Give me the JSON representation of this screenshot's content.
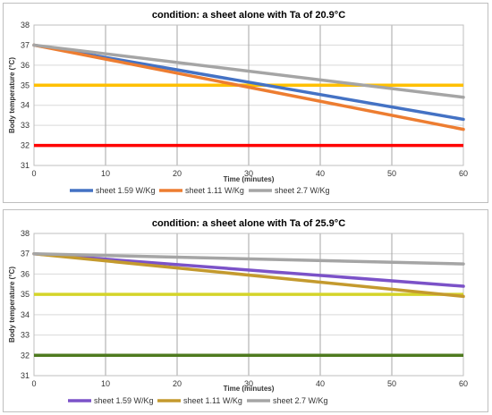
{
  "chart_data": [
    {
      "type": "line",
      "title": "condition: a sheet alone with Ta of 20.9°C",
      "xlabel": "Time (minutes)",
      "ylabel": "Body temperature (°C)",
      "xlim": [
        0,
        60
      ],
      "ylim": [
        31,
        38
      ],
      "xticks": [
        0,
        10,
        20,
        30,
        40,
        50,
        60
      ],
      "yticks": [
        31,
        32,
        33,
        34,
        35,
        36,
        37,
        38
      ],
      "grid": true,
      "legend_position": "bottom",
      "series": [
        {
          "name": "sheet 1.59 W/Kg",
          "color": "#4472c4",
          "x": [
            0,
            60
          ],
          "y": [
            37.0,
            33.3
          ]
        },
        {
          "name": "sheet 1.11 W/Kg",
          "color": "#ed7d31",
          "x": [
            0,
            60
          ],
          "y": [
            37.0,
            32.8
          ]
        },
        {
          "name": "sheet  2.7 W/Kg",
          "color": "#a5a5a5",
          "x": [
            0,
            60
          ],
          "y": [
            37.0,
            34.4
          ]
        }
      ],
      "reference_lines": [
        {
          "y": 35,
          "color": "#ffc000"
        },
        {
          "y": 32,
          "color": "#ff0000"
        }
      ]
    },
    {
      "type": "line",
      "title": "condition: a sheet alone with Ta of 25.9°C",
      "xlabel": "Time (minutes)",
      "ylabel": "Body temperature (°C)",
      "xlim": [
        0,
        60
      ],
      "ylim": [
        31,
        38
      ],
      "xticks": [
        0,
        10,
        20,
        30,
        40,
        50,
        60
      ],
      "yticks": [
        31,
        32,
        33,
        34,
        35,
        36,
        37,
        38
      ],
      "grid": true,
      "legend_position": "bottom",
      "series": [
        {
          "name": "sheet 1.59 W/Kg",
          "color": "#7b52c8",
          "x": [
            0,
            60
          ],
          "y": [
            37.0,
            35.4
          ]
        },
        {
          "name": "sheet 1.11 W/Kg",
          "color": "#c49a2e",
          "x": [
            0,
            60
          ],
          "y": [
            37.0,
            34.9
          ]
        },
        {
          "name": "sheet  2.7 W/Kg",
          "color": "#a5a5a5",
          "x": [
            0,
            60
          ],
          "y": [
            37.0,
            36.5
          ]
        }
      ],
      "reference_lines": [
        {
          "y": 35,
          "color": "#d4d42a"
        },
        {
          "y": 32,
          "color": "#4e7a1f"
        }
      ]
    }
  ]
}
